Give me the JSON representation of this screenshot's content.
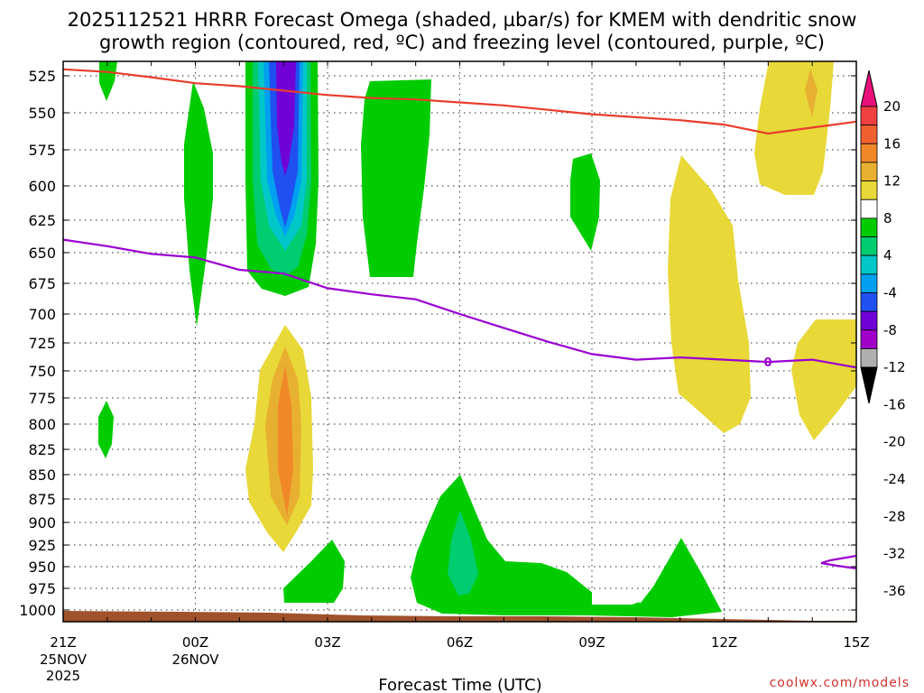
{
  "chart_data": {
    "type": "contour",
    "title_line1": "2025112521 HRRR Forecast Omega (shaded, µbar/s) for KMEM with dendritic snow",
    "title_line2": "growth region (contoured, red, ºC) and freezing level (contoured, purple, ºC)",
    "xlabel": "Forecast Time (UTC)",
    "credit": "coolwx.com/models",
    "y_ticks": [
      "525",
      "550",
      "575",
      "600",
      "625",
      "650",
      "675",
      "700",
      "725",
      "750",
      "775",
      "800",
      "825",
      "850",
      "875",
      "900",
      "925",
      "950",
      "975",
      "1000"
    ],
    "x_ticks": [
      {
        "hour": 0,
        "label": "21Z",
        "sub1": "25NOV",
        "sub2": "2025"
      },
      {
        "hour": 3,
        "label": "00Z",
        "sub1": "26NOV",
        "sub2": ""
      },
      {
        "hour": 6,
        "label": "03Z",
        "sub1": "",
        "sub2": ""
      },
      {
        "hour": 9,
        "label": "06Z",
        "sub1": "",
        "sub2": ""
      },
      {
        "hour": 12,
        "label": "09Z",
        "sub1": "",
        "sub2": ""
      },
      {
        "hour": 15,
        "label": "12Z",
        "sub1": "",
        "sub2": ""
      },
      {
        "hour": 18,
        "label": "15Z",
        "sub1": "",
        "sub2": ""
      }
    ],
    "colorbar": {
      "labels": [
        "20",
        "16",
        "12",
        "8",
        "4",
        "-4",
        "-8",
        "-12",
        "-16",
        "-20",
        "-24",
        "-28",
        "-32",
        "-36"
      ],
      "colors": [
        "#e8107a",
        "#f04040",
        "#f06030",
        "#f08828",
        "#e8b030",
        "#e8d838",
        "#ffffff",
        "#00cc00",
        "#00cc70",
        "#00c8c8",
        "#00a0f0",
        "#2050f0",
        "#7000d8",
        "#a000c8",
        "#b0b0b0",
        "#000000"
      ]
    },
    "freezing_level_label": "0",
    "dgz_line": {
      "hours": [
        0,
        1,
        2,
        3,
        4,
        5,
        6,
        7,
        8,
        9,
        10,
        11,
        12,
        13,
        14,
        15,
        16,
        17,
        18
      ],
      "pressure": [
        520,
        522,
        526,
        530,
        532,
        535,
        538,
        540,
        541,
        543,
        545,
        548,
        551,
        553,
        555,
        558,
        564,
        560,
        556
      ]
    },
    "freezing_line": {
      "hours": [
        0,
        1,
        2,
        3,
        4,
        5,
        6,
        7,
        8,
        9,
        10,
        11,
        12,
        13,
        14,
        15,
        16,
        17,
        18
      ],
      "pressure": [
        640,
        645,
        651,
        654,
        664,
        667,
        679,
        684,
        688,
        700,
        712,
        724,
        735,
        740,
        738,
        740,
        742,
        740,
        747
      ]
    }
  }
}
